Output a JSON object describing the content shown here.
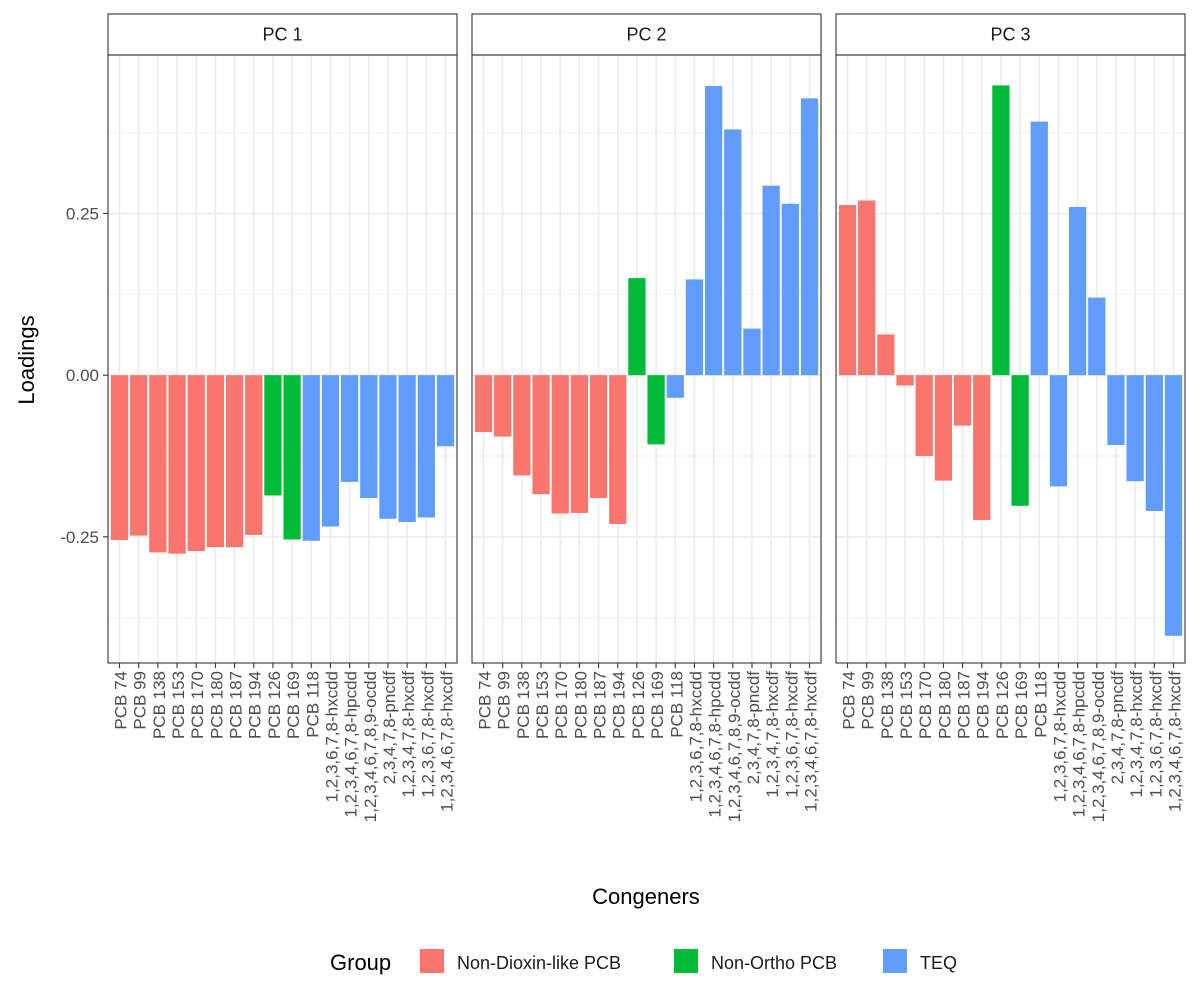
{
  "chart_data": {
    "type": "bar",
    "xlabel": "Congeners",
    "ylabel": "Loadings",
    "ylim": [
      -0.445,
      0.495
    ],
    "yticks": [
      -0.25,
      0.0,
      0.25
    ],
    "ytick_labels": [
      "-0.25",
      "0.00",
      "0.25"
    ],
    "grid": true,
    "legend_position": "bottom",
    "legend_title": "Group",
    "groups": [
      {
        "name": "Non-Dioxin-like PCB",
        "color": "#F8766D"
      },
      {
        "name": "Non-Ortho PCB",
        "color": "#00BA38"
      },
      {
        "name": "TEQ",
        "color": "#619CFF"
      }
    ],
    "categories": [
      "PCB 74",
      "PCB 99",
      "PCB 138",
      "PCB 153",
      "PCB 170",
      "PCB 180",
      "PCB 187",
      "PCB 194",
      "PCB 126",
      "PCB 169",
      "PCB 118",
      "1,2,3,6,7,8-hxcdd",
      "1,2,3,4,6,7,8-hpcdd",
      "1,2,3,4,6,7,8,9-ocdd",
      "2,3,4,7,8-pncdf",
      "1,2,3,4,7,8-hxcdf",
      "1,2,3,6,7,8-hxcdf",
      "1,2,3,4,6,7,8-hxcdf"
    ],
    "category_groups": [
      0,
      0,
      0,
      0,
      0,
      0,
      0,
      0,
      1,
      1,
      2,
      2,
      2,
      2,
      2,
      2,
      2,
      2
    ],
    "panels": [
      {
        "name": "PC 1",
        "values": [
          -0.255,
          -0.248,
          -0.274,
          -0.276,
          -0.272,
          -0.266,
          -0.266,
          -0.247,
          -0.186,
          -0.254,
          -0.256,
          -0.234,
          -0.165,
          -0.19,
          -0.222,
          -0.227,
          -0.22,
          -0.11
        ]
      },
      {
        "name": "PC 2",
        "values": [
          -0.088,
          -0.095,
          -0.155,
          -0.184,
          -0.214,
          -0.213,
          -0.19,
          -0.23,
          0.15,
          -0.107,
          -0.035,
          0.148,
          0.447,
          0.38,
          0.072,
          0.293,
          0.265,
          0.428
        ]
      },
      {
        "name": "PC 3",
        "values": [
          0.263,
          0.27,
          0.063,
          -0.016,
          -0.125,
          -0.163,
          -0.078,
          -0.224,
          0.448,
          -0.202,
          0.392,
          -0.172,
          0.26,
          0.12,
          -0.108,
          -0.164,
          -0.21,
          -0.403
        ]
      }
    ]
  }
}
